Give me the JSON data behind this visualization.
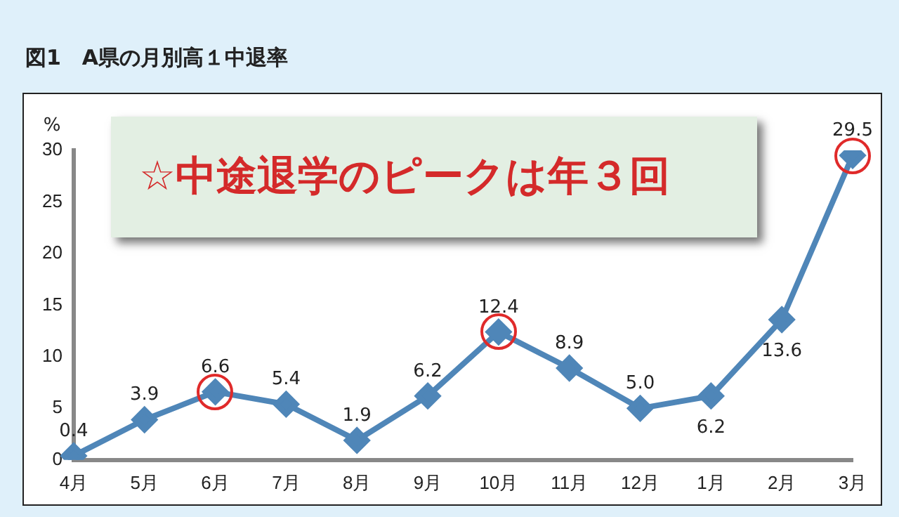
{
  "chart_data": {
    "type": "line",
    "title": "図1　A県の月別高１中退率",
    "ylabel": "%",
    "annotations": [
      "☆中途退学のピークは年３回"
    ],
    "categories": [
      "4月",
      "5月",
      "6月",
      "7月",
      "8月",
      "9月",
      "10月",
      "11月",
      "12月",
      "1月",
      "2月",
      "3月"
    ],
    "series": [
      {
        "color": "#4f86b8",
        "values": [
          0.4,
          3.9,
          6.6,
          5.4,
          1.9,
          6.2,
          12.4,
          8.9,
          5.0,
          6.2,
          13.6,
          29.5
        ]
      }
    ],
    "value_labels": [
      "0.4",
      "3.9",
      "6.6",
      "5.4",
      "1.9",
      "6.2",
      "12.4",
      "8.9",
      "5.0",
      "6.2",
      "13.6",
      "29.5"
    ],
    "ylim": [
      0,
      30
    ],
    "yticks": [
      0,
      5,
      10,
      15,
      20,
      25,
      30
    ],
    "grid": false,
    "legend": false,
    "marker": "diamond",
    "line_style": "solid"
  }
}
